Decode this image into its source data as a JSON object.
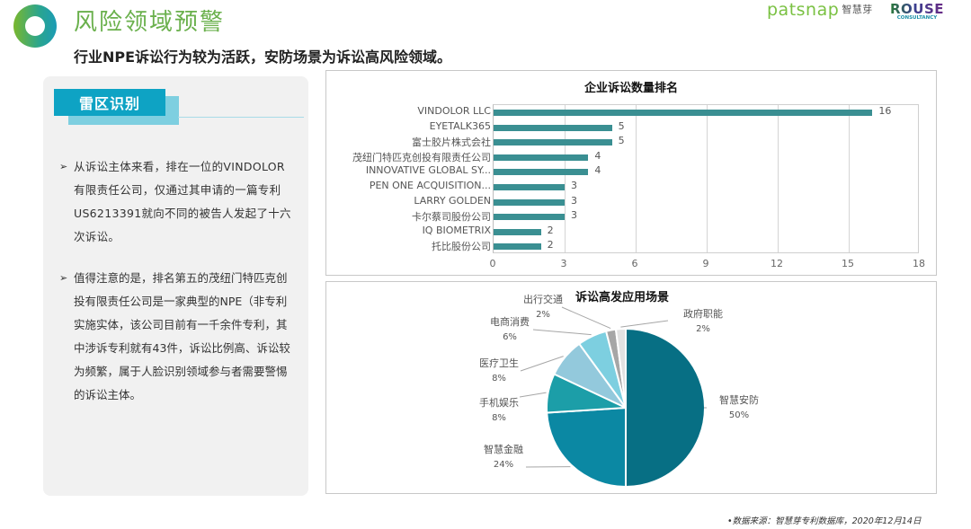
{
  "header": {
    "title": "风险领域预警",
    "subtitle": "行业NPE诉讼行为较为活跃，安防场景为诉讼高风险领域。",
    "brand_patsnap": "patsnap",
    "brand_patsnap_cn": "智慧芽",
    "brand_rouse": "ROUSE",
    "brand_rouse_sub": "CONSULTANCY"
  },
  "left_panel": {
    "section_tag": "雷区识别",
    "bullets": [
      {
        "marker": "➢",
        "text": "从诉讼主体来看，排在一位的VINDOLOR有限责任公司，仅通过其申请的一篇专利US6213391就向不同的被告人发起了十六次诉讼。"
      },
      {
        "marker": "➢",
        "text": "值得注意的是，排名第五的茂纽门特匹克创投有限责任公司是一家典型的NPE（非专利实施实体，该公司目前有一千余件专利，其中涉诉专利就有43件，诉讼比例高、诉讼较为频繁，属于人脸识别领域参与者需要警惕的诉讼主体。"
      }
    ]
  },
  "colors": {
    "title_green": "#6ab04c",
    "tag_blue": "#0ea3c4",
    "bar_teal": "#3a8f92",
    "panel_bg": "#f1f1f1"
  },
  "chart_data": [
    {
      "type": "bar",
      "orientation": "horizontal",
      "title": "企业诉讼数量排名",
      "categories": [
        "VINDOLOR LLC",
        "EYETALK365",
        "富士胶片株式会社",
        "茂纽门特匹克创投有限责任公司",
        "INNOVATIVE GLOBAL SY...",
        "PEN ONE ACQUISITION...",
        "LARRY GOLDEN",
        "卡尔蔡司股份公司",
        "IQ BIOMETRIX",
        "托比股份公司"
      ],
      "values": [
        16,
        5,
        5,
        4,
        4,
        3,
        3,
        3,
        2,
        2
      ],
      "xlabel": "",
      "ylabel": "",
      "xlim": [
        0,
        18
      ],
      "xticks": [
        "0",
        "3",
        "6",
        "9",
        "12",
        "15",
        "18"
      ],
      "grid": true,
      "data_labels": true,
      "color": "#3a8f92"
    },
    {
      "type": "pie",
      "title": "诉讼高发应用场景",
      "categories": [
        "智慧安防",
        "智慧金融",
        "手机娱乐",
        "医疗卫生",
        "电商消费",
        "出行交通",
        "政府职能"
      ],
      "values": [
        50,
        24,
        8,
        8,
        6,
        2,
        2
      ],
      "labels": [
        "50%",
        "24%",
        "8%",
        "8%",
        "6%",
        "2%",
        "2%"
      ],
      "colors": [
        "#076f84",
        "#0b88a3",
        "#1c9ea8",
        "#93c9dc",
        "#7dcfe0",
        "#a6a6a6",
        "#e2e2e2"
      ],
      "legend": "none",
      "data_labels": "outside with leader lines"
    }
  ],
  "footnote": "•数据来源：智慧芽专利数据库，2020年12月14日"
}
